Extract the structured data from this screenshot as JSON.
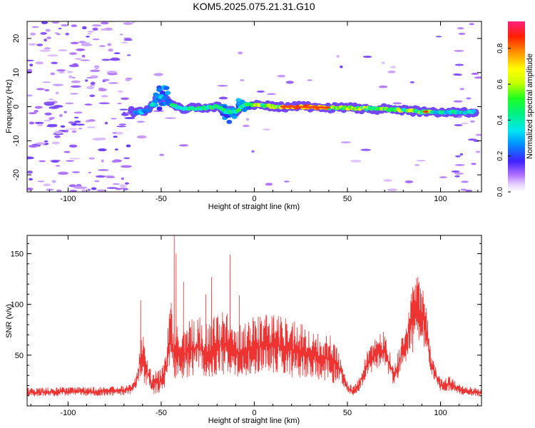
{
  "title": "KOM5.2025.075.21.31.G10",
  "chart_data": [
    {
      "type": "heatmap",
      "xlabel": "Height of straight line (km)",
      "ylabel": "Frequency (Hz)",
      "xlim": [
        -122,
        122
      ],
      "ylim": [
        -25,
        25
      ],
      "xticks": [
        -100,
        -50,
        0,
        50,
        100
      ],
      "yticks": [
        -20,
        -10,
        0,
        10,
        20
      ],
      "colorbar": {
        "label": "Normalized spectral amplitude",
        "range": [
          0.0,
          0.95
        ],
        "ticks": [
          0.0,
          0.2,
          0.4,
          0.6,
          0.8
        ]
      },
      "trace": {
        "description_points_x": [
          -65,
          -58,
          -52,
          -48,
          -44,
          -40,
          -30,
          -20,
          -15,
          -10,
          -5,
          0,
          10,
          20,
          40,
          60,
          80,
          90,
          100,
          110,
          120
        ],
        "description_points_y": [
          -1.5,
          -1.5,
          2.5,
          2.5,
          0.5,
          -0.5,
          -0.5,
          0.0,
          -1.5,
          -1.5,
          0.5,
          0.5,
          0.0,
          0.0,
          -0.3,
          -0.5,
          -1.0,
          -1.5,
          -1.5,
          -1.7,
          -1.5
        ],
        "peak_amplitude_x": [
          15,
          40
        ],
        "peak_amplitude": 0.9
      }
    },
    {
      "type": "line",
      "xlabel": "Height of straight line (km)",
      "ylabel": "SNR (v/v)",
      "xlim": [
        -122,
        122
      ],
      "ylim": [
        0,
        168
      ],
      "xticks": [
        -100,
        -50,
        0,
        50,
        100
      ],
      "yticks": [
        50,
        100,
        150
      ],
      "color": "#ee3333",
      "envelope": {
        "x": [
          -122,
          -100,
          -80,
          -70,
          -65,
          -62,
          -61,
          -59,
          -55,
          -50,
          -47,
          -45,
          -43,
          -41,
          -38,
          -35,
          -30,
          -25,
          -20,
          -15,
          -13,
          -10,
          -5,
          0,
          10,
          20,
          30,
          40,
          45,
          50,
          53,
          56,
          60,
          65,
          70,
          75,
          80,
          85,
          88,
          92,
          95,
          100,
          105,
          110,
          115,
          122
        ],
        "y": [
          13,
          14,
          14,
          15,
          17,
          32,
          55,
          40,
          22,
          24,
          40,
          70,
          48,
          52,
          50,
          55,
          58,
          52,
          60,
          60,
          54,
          52,
          56,
          58,
          60,
          56,
          50,
          46,
          40,
          18,
          14,
          20,
          38,
          52,
          56,
          28,
          55,
          88,
          96,
          80,
          40,
          20,
          22,
          16,
          14,
          13
        ]
      },
      "spikes": [
        [
          -61,
          104
        ],
        [
          -43,
          168
        ],
        [
          -42,
          150
        ],
        [
          -38,
          122
        ],
        [
          -23,
          127
        ],
        [
          -13,
          149
        ],
        [
          -26,
          110
        ],
        [
          85,
          117
        ],
        [
          -8,
          109
        ]
      ]
    }
  ]
}
